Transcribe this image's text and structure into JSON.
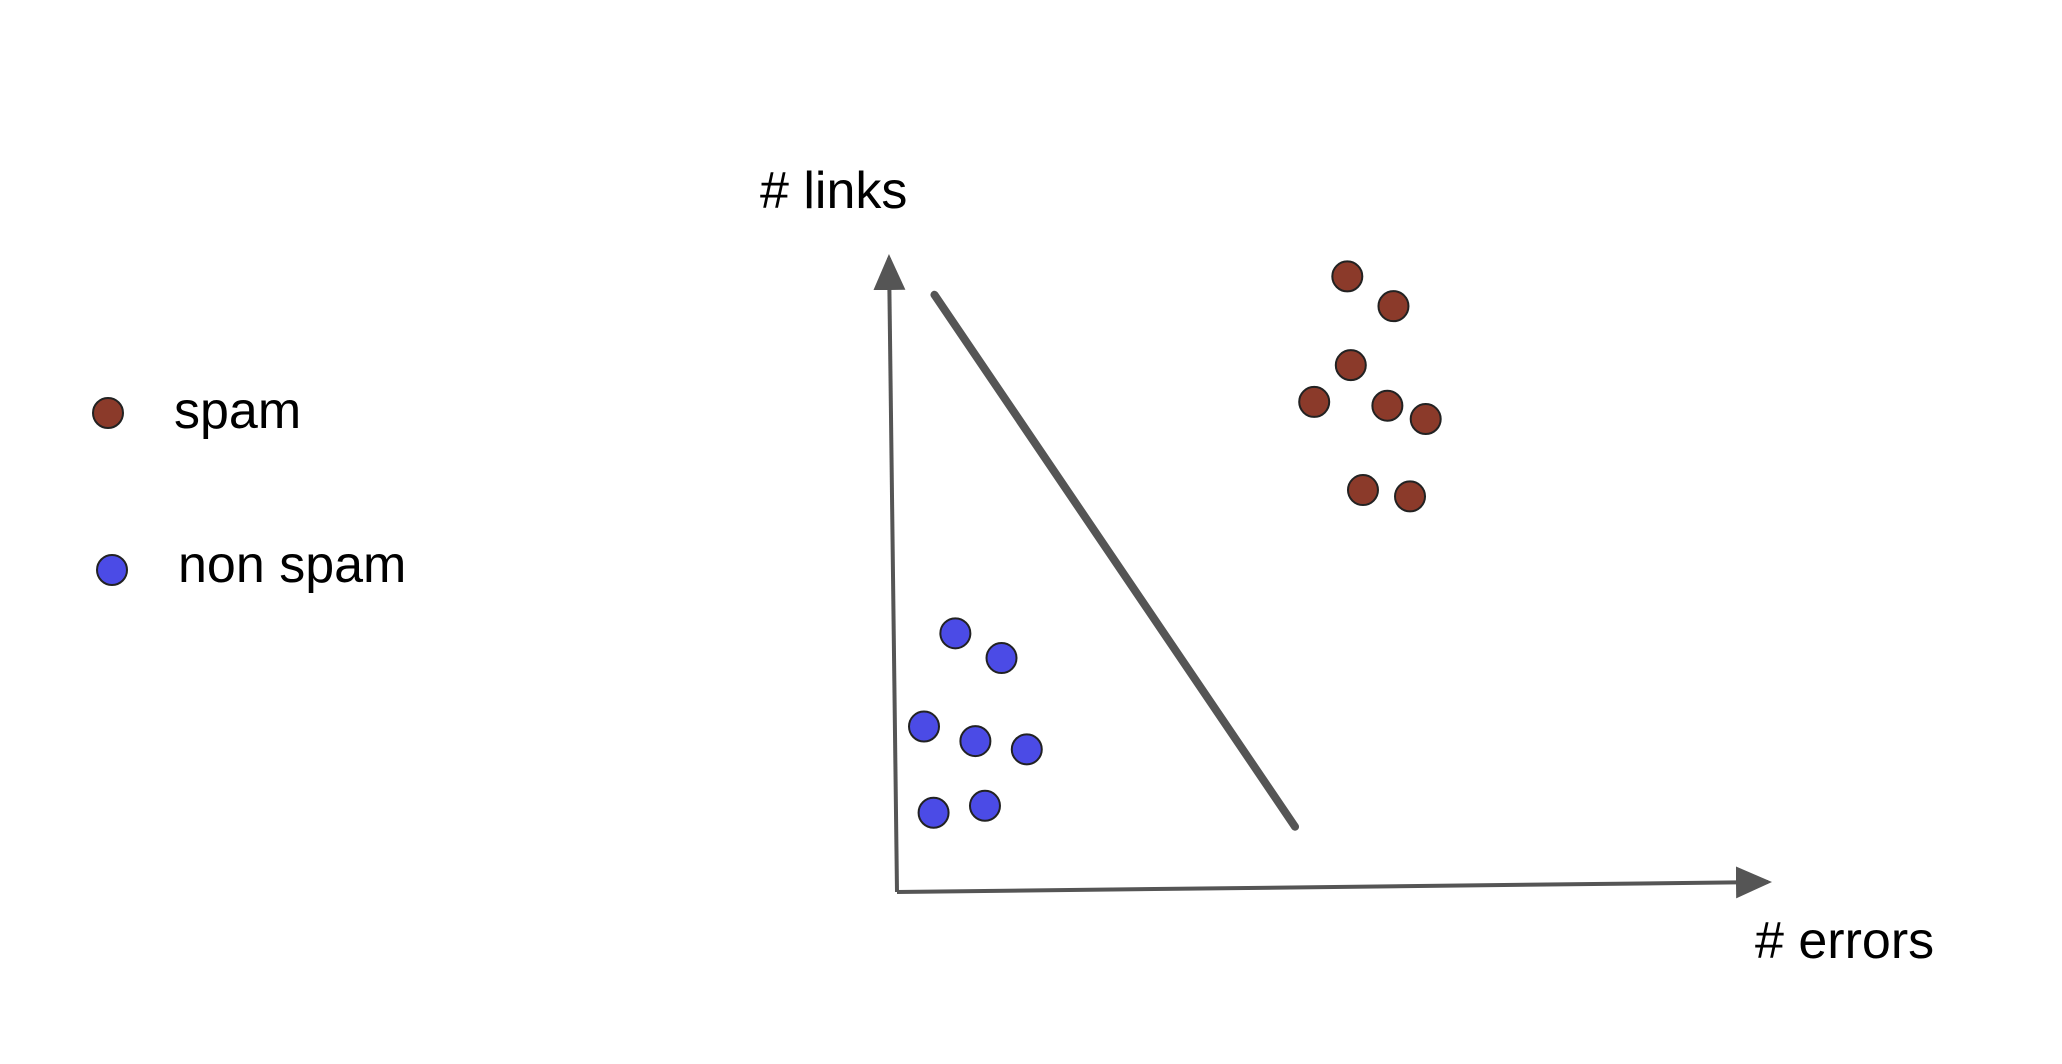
{
  "chart_data": {
    "type": "scatter",
    "xlabel": "# errors",
    "ylabel": "# links",
    "xlim": [
      0,
      10
    ],
    "ylim": [
      0,
      10
    ],
    "grid": false,
    "legend_position": "left",
    "series": [
      {
        "name": "spam",
        "color": "#8B3A2A",
        "points": [
          {
            "x": 5.17,
            "y": 9.71
          },
          {
            "x": 5.7,
            "y": 9.24
          },
          {
            "x": 5.21,
            "y": 8.31
          },
          {
            "x": 4.79,
            "y": 7.73
          },
          {
            "x": 5.63,
            "y": 7.67
          },
          {
            "x": 6.07,
            "y": 7.46
          },
          {
            "x": 5.35,
            "y": 6.34
          },
          {
            "x": 5.89,
            "y": 6.24
          }
        ]
      },
      {
        "name": "non spam",
        "color": "#4B4BE6",
        "points": [
          {
            "x": 0.67,
            "y": 4.08
          },
          {
            "x": 1.2,
            "y": 3.69
          },
          {
            "x": 0.31,
            "y": 2.61
          },
          {
            "x": 0.9,
            "y": 2.38
          },
          {
            "x": 1.49,
            "y": 2.25
          },
          {
            "x": 0.42,
            "y": 1.25
          },
          {
            "x": 1.01,
            "y": 1.36
          }
        ]
      }
    ],
    "decision_boundary": [
      {
        "x": 0.43,
        "y": 9.42
      },
      {
        "x": 4.57,
        "y": 1.03
      }
    ],
    "axis_color": "#555555"
  }
}
